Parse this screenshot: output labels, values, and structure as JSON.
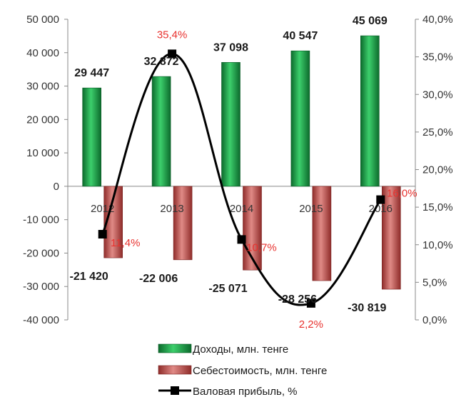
{
  "chart_data": {
    "type": "bar",
    "categories": [
      "2012",
      "2013",
      "2014",
      "2015",
      "2016"
    ],
    "series": [
      {
        "name": "Доходы, млн. тенге",
        "type": "bar",
        "axis": "left",
        "color": "#1a9a45",
        "values": [
          29447,
          32872,
          37098,
          40547,
          45069
        ],
        "labels": [
          "29 447",
          "32 872",
          "37 098",
          "40 547",
          "45 069"
        ]
      },
      {
        "name": "Себестоимость, млн. тенге",
        "type": "bar",
        "axis": "left",
        "color": "#c0504d",
        "values": [
          -21420,
          -22006,
          -25071,
          -28256,
          -30819
        ],
        "labels": [
          "-21 420",
          "-22 006",
          "-25 071",
          "-28 256",
          "-30 819"
        ]
      },
      {
        "name": "Валовая прибыль, %",
        "type": "line",
        "axis": "right",
        "color": "#000000",
        "values": [
          11.4,
          35.4,
          10.7,
          2.2,
          16.0
        ],
        "labels": [
          "11,4%",
          "35,4%",
          "10,7%",
          "2,2%",
          "16,0%"
        ]
      }
    ],
    "y_left": {
      "ylim": [
        -40000,
        50000
      ],
      "ticks": [
        50000,
        40000,
        30000,
        20000,
        10000,
        0,
        -10000,
        -20000,
        -30000,
        -40000
      ],
      "tick_labels": [
        "50 000",
        "40 000",
        "30 000",
        "20 000",
        "10 000",
        "0",
        "-10 000",
        "-20 000",
        "-30 000",
        "-40 000"
      ]
    },
    "y_right": {
      "ylim": [
        0,
        40
      ],
      "ticks": [
        40,
        35,
        30,
        25,
        20,
        15,
        10,
        5,
        0
      ],
      "tick_labels": [
        "40,0%",
        "35,0%",
        "30,0%",
        "25,0%",
        "20,0%",
        "15,0%",
        "10,0%",
        "5,0%",
        "0,0%"
      ]
    },
    "legend_position": "bottom",
    "grid": false,
    "title": ""
  }
}
